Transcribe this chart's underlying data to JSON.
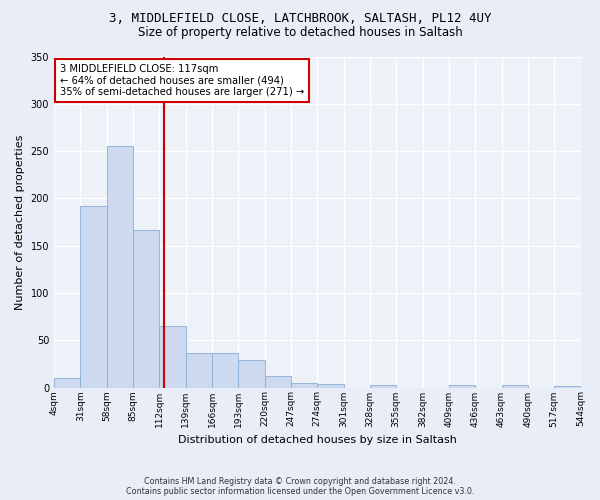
{
  "title1": "3, MIDDLEFIELD CLOSE, LATCHBROOK, SALTASH, PL12 4UY",
  "title2": "Size of property relative to detached houses in Saltash",
  "xlabel": "Distribution of detached houses by size in Saltash",
  "ylabel": "Number of detached properties",
  "bar_color": "#ccd9ee",
  "bar_edgecolor": "#8aaed4",
  "bins": [
    4,
    31,
    58,
    85,
    112,
    139,
    166,
    193,
    220,
    247,
    274,
    301,
    328,
    355,
    382,
    409,
    436,
    463,
    490,
    517,
    544
  ],
  "counts": [
    10,
    192,
    255,
    167,
    65,
    37,
    37,
    29,
    12,
    5,
    4,
    0,
    3,
    0,
    0,
    3,
    0,
    3,
    0,
    2
  ],
  "property_size": 117,
  "vline_color": "#cc0000",
  "annotation_text": "3 MIDDLEFIELD CLOSE: 117sqm\n← 64% of detached houses are smaller (494)\n35% of semi-detached houses are larger (271) →",
  "annotation_box_color": "white",
  "annotation_border_color": "#cc0000",
  "footer": "Contains HM Land Registry data © Crown copyright and database right 2024.\nContains public sector information licensed under the Open Government Licence v3.0.",
  "bg_color": "#e8edf7",
  "plot_bg_color": "#edf1f8",
  "grid_color": "white",
  "ylim": [
    0,
    350
  ],
  "xlim": [
    4,
    544
  ],
  "title_fontsize": 9,
  "subtitle_fontsize": 8.5,
  "tick_fontsize": 6.5,
  "ylabel_fontsize": 8,
  "xlabel_fontsize": 8
}
